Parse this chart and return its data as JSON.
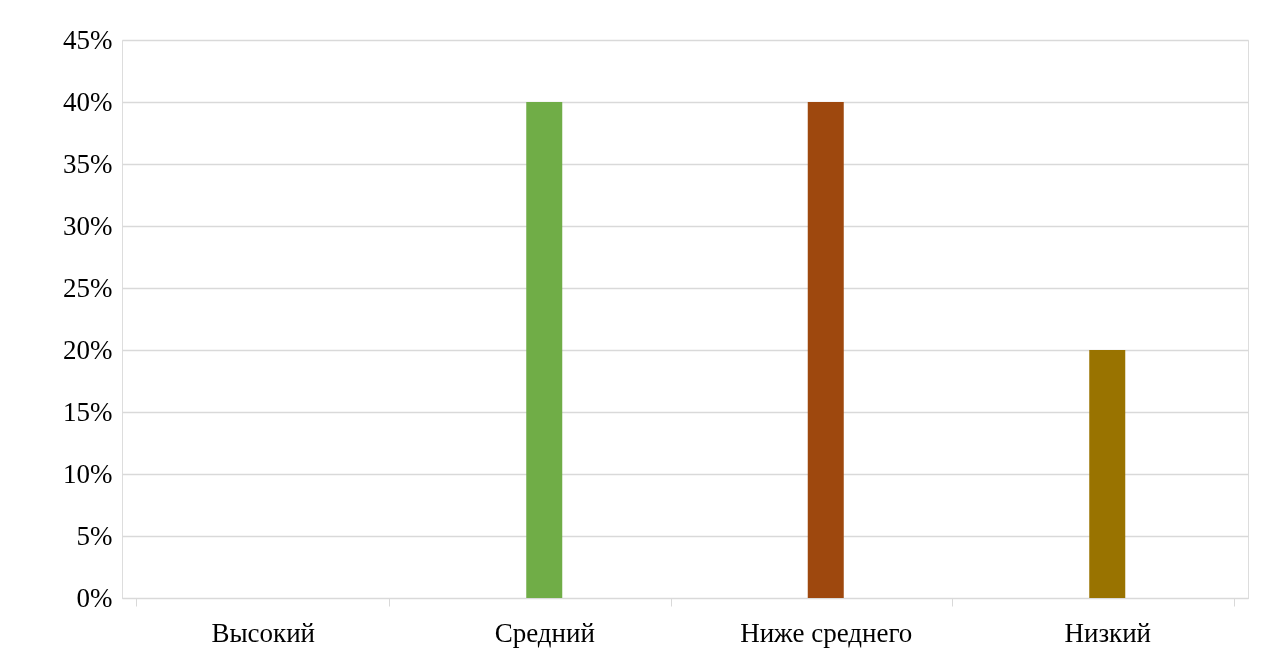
{
  "chart_data": {
    "type": "bar",
    "categories": [
      "Высокий",
      "Средний",
      "Ниже среднего",
      "Низкий"
    ],
    "values": [
      0,
      40,
      40,
      20
    ],
    "colors": [
      "#4472c4",
      "#70ad47",
      "#9e480e",
      "#997300"
    ],
    "ylim": [
      0,
      45
    ],
    "yticks": [
      {
        "value": 0,
        "label": "0%"
      },
      {
        "value": 5,
        "label": "5%"
      },
      {
        "value": 10,
        "label": "10%"
      },
      {
        "value": 15,
        "label": "15%"
      },
      {
        "value": 20,
        "label": "20%"
      },
      {
        "value": 25,
        "label": "25%"
      },
      {
        "value": 30,
        "label": "30%"
      },
      {
        "value": 35,
        "label": "35%"
      },
      {
        "value": 40,
        "label": "40%"
      },
      {
        "value": 45,
        "label": "45%"
      }
    ],
    "grid": "y",
    "legend": false
  }
}
